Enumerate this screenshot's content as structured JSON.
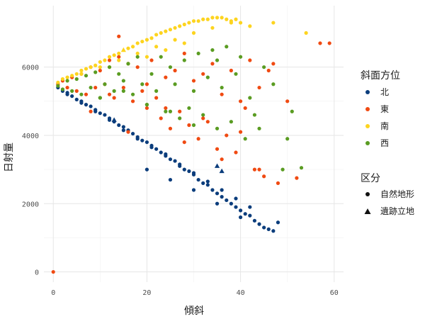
{
  "chart_data": {
    "type": "scatter",
    "title": "",
    "xlabel": "傾斜",
    "ylabel": "日射量",
    "xlim": [
      -2,
      62
    ],
    "ylim": [
      -300,
      7800
    ],
    "x_ticks": [
      0,
      20,
      40,
      60
    ],
    "y_ticks": [
      0,
      2000,
      4000,
      6000
    ],
    "grid": true,
    "legend": [
      {
        "title": "斜面方位",
        "entries": [
          {
            "key": "N",
            "label": "北",
            "color": "#0b3d7c"
          },
          {
            "key": "E",
            "label": "東",
            "color": "#f04a12"
          },
          {
            "key": "S",
            "label": "南",
            "color": "#fdd41f"
          },
          {
            "key": "W",
            "label": "西",
            "color": "#5a9c22"
          }
        ]
      },
      {
        "title": "区分",
        "entries": [
          {
            "key": "circle",
            "label": "自然地形",
            "shape": "circle"
          },
          {
            "key": "triangle",
            "label": "遺跡立地",
            "shape": "triangle"
          }
        ]
      }
    ],
    "series": [
      {
        "name": "北",
        "color": "#0b3d7c",
        "x": [
          1,
          2,
          3,
          4,
          5,
          6,
          7,
          8,
          9,
          10,
          11,
          12,
          13,
          14,
          15,
          16,
          17,
          18,
          19,
          20,
          21,
          22,
          23,
          24,
          25,
          26,
          27,
          28,
          29,
          30,
          31,
          32,
          33,
          34,
          35,
          36,
          37,
          38,
          39,
          40,
          41,
          42,
          43,
          44,
          45,
          46,
          47,
          48,
          3,
          6,
          9,
          12,
          15,
          18,
          21,
          24,
          27,
          30,
          33,
          36,
          39,
          42,
          20,
          25,
          30,
          35,
          40
        ],
        "y": [
          5400,
          5300,
          5200,
          5150,
          5050,
          5000,
          4900,
          4850,
          4750,
          4650,
          4600,
          4500,
          4400,
          4300,
          4250,
          4150,
          4050,
          3950,
          3850,
          3800,
          3700,
          3600,
          3500,
          3400,
          3300,
          3250,
          3100,
          3000,
          2950,
          2850,
          2700,
          2600,
          2550,
          2400,
          2300,
          2200,
          2100,
          2000,
          1900,
          1800,
          1700,
          1650,
          1500,
          1400,
          1300,
          1250,
          1200,
          1450,
          5250,
          4950,
          4700,
          4450,
          4150,
          3900,
          3650,
          3450,
          3150,
          2900,
          2650,
          2400,
          2150,
          1900,
          3000,
          2700,
          2400,
          2000,
          1600
        ]
      },
      {
        "name": "東",
        "color": "#f04a12",
        "x": [
          1,
          2,
          3,
          4,
          5,
          6,
          7,
          8,
          9,
          10,
          11,
          12,
          13,
          14,
          15,
          16,
          17,
          18,
          19,
          20,
          21,
          22,
          23,
          24,
          25,
          26,
          27,
          28,
          29,
          30,
          31,
          32,
          33,
          34,
          35,
          36,
          37,
          38,
          39,
          40,
          41,
          42,
          43,
          44,
          45,
          46,
          47,
          48,
          50,
          52,
          57,
          59,
          0,
          8,
          12,
          16,
          20,
          24,
          28,
          32,
          36,
          40,
          44,
          14
        ],
        "y": [
          5500,
          5600,
          5400,
          5700,
          5300,
          5800,
          5200,
          6000,
          5400,
          5900,
          5500,
          6200,
          5100,
          6300,
          5400,
          6100,
          5000,
          6000,
          5300,
          4800,
          6200,
          5100,
          4500,
          5700,
          4200,
          5900,
          4700,
          6400,
          4300,
          5600,
          3900,
          5800,
          4400,
          6100,
          3600,
          5200,
          4000,
          5900,
          3500,
          5000,
          4800,
          6200,
          3000,
          5400,
          2800,
          5900,
          6100,
          2600,
          5000,
          2750,
          6700,
          6700,
          0,
          4700,
          5200,
          4100,
          5500,
          4800,
          3800,
          4500,
          3300,
          4100,
          3000,
          6900
        ]
      },
      {
        "name": "南",
        "color": "#fdd41f",
        "x": [
          1,
          2,
          3,
          4,
          5,
          6,
          7,
          8,
          9,
          10,
          11,
          12,
          13,
          14,
          15,
          16,
          17,
          18,
          19,
          20,
          21,
          22,
          23,
          24,
          25,
          26,
          27,
          28,
          29,
          30,
          31,
          32,
          33,
          34,
          35,
          36,
          37,
          38,
          39,
          40,
          42,
          47,
          54,
          6,
          10,
          14,
          18,
          22,
          26,
          30,
          34,
          38,
          12,
          16,
          20,
          24,
          28
        ],
        "y": [
          5550,
          5650,
          5700,
          5750,
          5800,
          5900,
          5950,
          6000,
          6050,
          6150,
          6200,
          6300,
          6350,
          6400,
          6500,
          6550,
          6600,
          6700,
          6750,
          6800,
          6850,
          6950,
          7000,
          7050,
          7100,
          7150,
          7200,
          7250,
          7300,
          7350,
          7350,
          7400,
          7400,
          7450,
          7450,
          7450,
          7400,
          7350,
          7400,
          7300,
          7200,
          7300,
          7000,
          5800,
          6000,
          6200,
          6400,
          6600,
          6800,
          7000,
          7150,
          7300,
          6000,
          6100,
          6300,
          6500,
          6700
        ]
      },
      {
        "name": "西",
        "color": "#5a9c22",
        "x": [
          1,
          2,
          3,
          4,
          5,
          6,
          7,
          8,
          9,
          10,
          11,
          12,
          13,
          14,
          15,
          16,
          17,
          18,
          19,
          20,
          21,
          22,
          23,
          24,
          25,
          26,
          27,
          28,
          29,
          30,
          31,
          32,
          33,
          34,
          35,
          36,
          37,
          38,
          39,
          40,
          41,
          42,
          43,
          44,
          45,
          47,
          49,
          50,
          51,
          53,
          10,
          15,
          20,
          25,
          30,
          35
        ],
        "y": [
          5450,
          5350,
          5600,
          5300,
          5650,
          5200,
          5750,
          5400,
          5850,
          5100,
          5500,
          6000,
          5300,
          5800,
          5600,
          6100,
          5200,
          6300,
          5500,
          4900,
          5800,
          5300,
          6300,
          4700,
          6000,
          5500,
          4500,
          6200,
          4800,
          5300,
          6400,
          4600,
          5700,
          6500,
          4200,
          5400,
          6600,
          4400,
          5800,
          6300,
          3900,
          5100,
          4600,
          4200,
          6000,
          5500,
          3000,
          3900,
          4700,
          3050,
          5100,
          5300,
          4900,
          4700,
          4300,
          6200
        ]
      }
    ],
    "triangle_points": [
      {
        "series": "北",
        "x": 13,
        "y": 4450
      },
      {
        "series": "北",
        "x": 35,
        "y": 3100
      },
      {
        "series": "北",
        "x": 36,
        "y": 2950
      },
      {
        "series": "南",
        "x": 15,
        "y": 6500
      }
    ]
  }
}
